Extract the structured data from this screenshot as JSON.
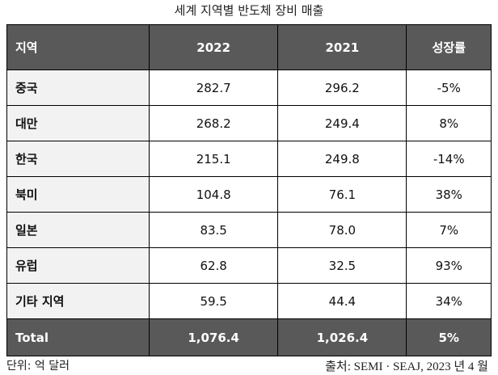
{
  "title": "세계 지역별 반도체 장비 매출",
  "table": {
    "header": [
      "지역",
      "2022",
      "2021",
      "성장률"
    ],
    "rows": [
      [
        "중국",
        "282.7",
        "296.2",
        "-5%"
      ],
      [
        "대만",
        "268.2",
        "249.4",
        "8%"
      ],
      [
        "한국",
        "215.1",
        "249.8",
        "-14%"
      ],
      [
        "북미",
        "104.8",
        "76.1",
        "38%"
      ],
      [
        "일본",
        "83.5",
        "78.0",
        "7%"
      ],
      [
        "유럽",
        "62.8",
        "32.5",
        "93%"
      ],
      [
        "기타 지역",
        "59.5",
        "44.4",
        "34%"
      ]
    ],
    "total": [
      "Total",
      "1,076.4",
      "1,026.4",
      "5%"
    ]
  },
  "unit": "단위: 억 달러",
  "source": "출처: SEMI · SEAJ, 2023 년 4 월"
}
